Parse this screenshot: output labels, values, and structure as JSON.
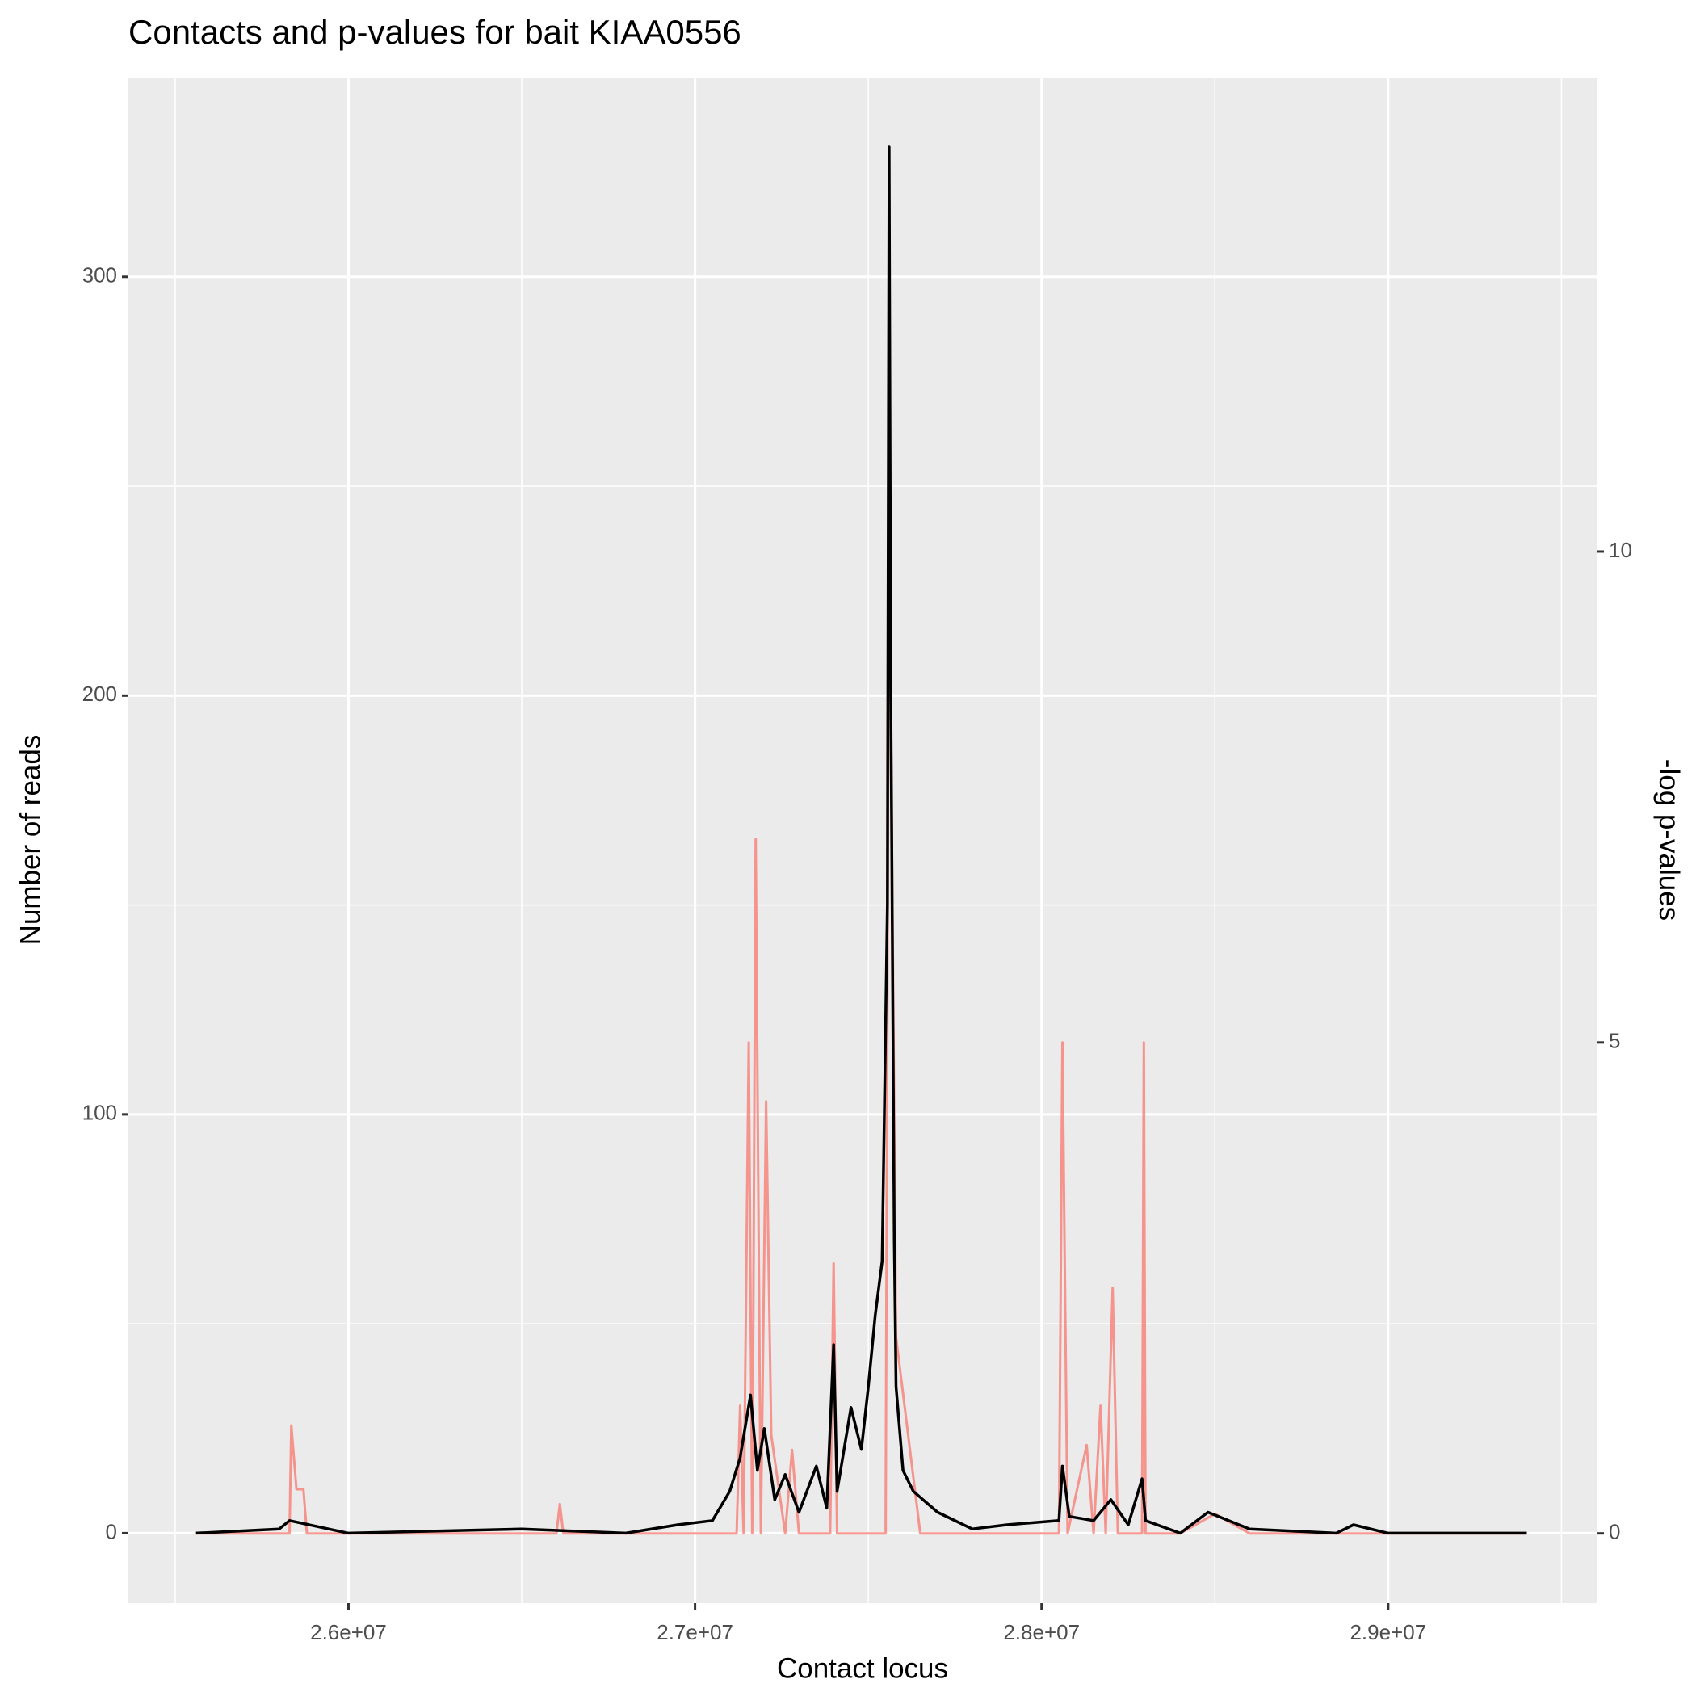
{
  "chart_data": {
    "type": "line",
    "title": "Contacts and p-values for bait KIAA0556",
    "x_label": "Contact locus",
    "y_label": "Number of reads",
    "y2_label": "-log p-values",
    "xlim": [
      25365000,
      29604000
    ],
    "xticks": [
      {
        "value": 26000000,
        "label": "2.6e+07"
      },
      {
        "value": 27000000,
        "label": "2.7e+07"
      },
      {
        "value": 28000000,
        "label": "2.8e+07"
      },
      {
        "value": 29000000,
        "label": "2.9e+07"
      }
    ],
    "xminor": [
      25500000,
      26500000,
      27500000,
      28500000,
      29500000
    ],
    "ylim": [
      -16.7,
      347.4
    ],
    "yticks": [
      0,
      100,
      200,
      300
    ],
    "yminor": [
      50,
      150,
      250
    ],
    "y2lim": [
      -0.71,
      14.82
    ],
    "y2ticks": [
      0,
      5,
      10
    ],
    "grid": true,
    "series": [
      {
        "color": "#F8766D",
        "axis": "y2",
        "x": [
          25560000,
          25830000,
          25835000,
          25850000,
          25870000,
          25880000,
          26600000,
          26610000,
          26620000,
          27120000,
          27130000,
          27140000,
          27155000,
          27165000,
          27175000,
          27190000,
          27205000,
          27220000,
          27260000,
          27280000,
          27300000,
          27390000,
          27400000,
          27410000,
          27550000,
          27560000,
          27580000,
          27650000,
          28050000,
          28060000,
          28075000,
          28130000,
          28150000,
          28170000,
          28185000,
          28205000,
          28220000,
          28290000,
          28295000,
          28300000,
          28400000,
          28500000,
          28600000,
          29400000
        ],
        "values": [
          0,
          0,
          1.1,
          0.45,
          0.45,
          0,
          0,
          0.3,
          0,
          0,
          1.3,
          0,
          5.0,
          0,
          7.07,
          0,
          4.4,
          1.0,
          0,
          0.85,
          0,
          0,
          2.75,
          0,
          0,
          10.5,
          2,
          0,
          0,
          5.0,
          0,
          0.9,
          0,
          1.3,
          0,
          2.5,
          0,
          0,
          5.0,
          0,
          0,
          0.2,
          0,
          0
        ]
      },
      {
        "color": "#000000",
        "x": [
          25560000,
          25800000,
          25830000,
          26000000,
          26500000,
          26800000,
          26950000,
          27050000,
          27100000,
          27130000,
          27160000,
          27180000,
          27200000,
          27230000,
          27260000,
          27300000,
          27350000,
          27380000,
          27400000,
          27410000,
          27450000,
          27480000,
          27500000,
          27520000,
          27540000,
          27555000,
          27560000,
          27565000,
          27575000,
          27580000,
          27600000,
          27630000,
          27700000,
          27800000,
          27900000,
          28050000,
          28060000,
          28080000,
          28150000,
          28200000,
          28250000,
          28290000,
          28300000,
          28400000,
          28480000,
          28600000,
          28850000,
          28900000,
          29000000,
          29400000
        ],
        "values": [
          0,
          1,
          3,
          0,
          1,
          0,
          2,
          3,
          10,
          18,
          33,
          15,
          25,
          8,
          14,
          5,
          16,
          6,
          45,
          10,
          30,
          20,
          35,
          52,
          65,
          150,
          331,
          200,
          70,
          35,
          15,
          10,
          5,
          1,
          2,
          3,
          16,
          4,
          3,
          8,
          2,
          13,
          3,
          0,
          5,
          1,
          0,
          2,
          0,
          0
        ]
      }
    ]
  }
}
